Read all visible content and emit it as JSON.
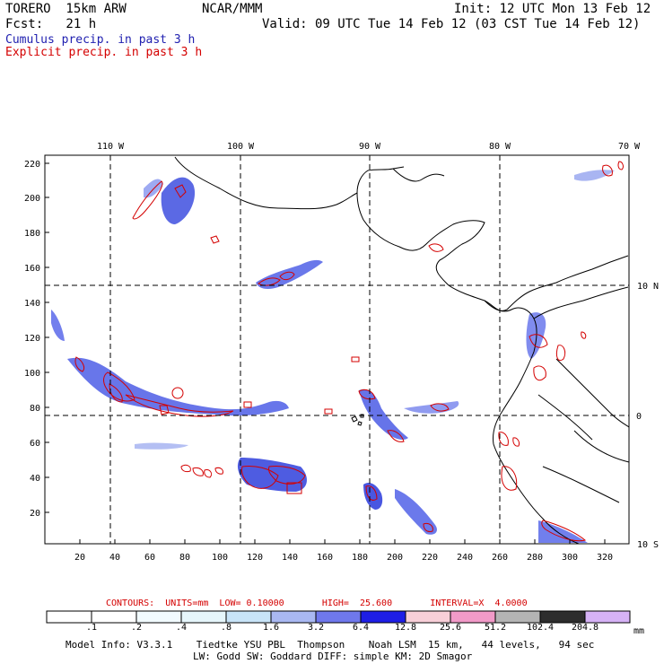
{
  "header": {
    "model": "TORERO  15km ARW",
    "org": "NCAR/MMM",
    "init": "Init: 12 UTC Mon 13 Feb 12",
    "fcst": "Fcst:   21 h",
    "valid": "Valid: 09 UTC Tue 14 Feb 12 (03 CST Tue 14 Feb 12)",
    "legend_cumulus": "Cumulus precip. in past 3 h",
    "legend_explicit": "Explicit precip. in past 3 h"
  },
  "map": {
    "lon_labels": [
      "110 W",
      "100 W",
      "90 W",
      "80 W",
      "70 W"
    ],
    "lat_labels": [
      "10 N",
      "0",
      "10 S"
    ],
    "y_ticks": [
      "220",
      "200",
      "180",
      "160",
      "140",
      "120",
      "100",
      "80",
      "60",
      "40",
      "20"
    ],
    "x_ticks": [
      "20",
      "40",
      "60",
      "80",
      "100",
      "120",
      "140",
      "160",
      "180",
      "200",
      "220",
      "240",
      "260",
      "280",
      "300",
      "320"
    ]
  },
  "contours_text": "CONTOURS:  UNITS=mm  LOW= 0.10000       HIGH=  25.600       INTERVAL=X  4.0000",
  "colorbar": {
    "labels": [
      ".1",
      ".2",
      ".4",
      ".8",
      "1.6",
      "3.2",
      "6.4",
      "12.8",
      "25.6",
      "51.2",
      "102.4",
      "204.8"
    ],
    "unit": "mm",
    "colors": [
      "#ffffff",
      "#ffffff",
      "#f2fbff",
      "#e6f6fb",
      "#c8e4f8",
      "#a9b8f2",
      "#6f78ec",
      "#1e1ee6",
      "#f8cfd8",
      "#f29ac8",
      "#b4b4b4",
      "#2d2d2d",
      "#d6b2f6"
    ]
  },
  "footer": {
    "line1": "Model Info: V3.3.1    Tiedtke YSU PBL  Thompson    Noah LSM  15 km,   44 levels,   94 sec",
    "line2": "LW: Godd SW: Goddard DIFF: simple KM: 2D Smagor"
  }
}
